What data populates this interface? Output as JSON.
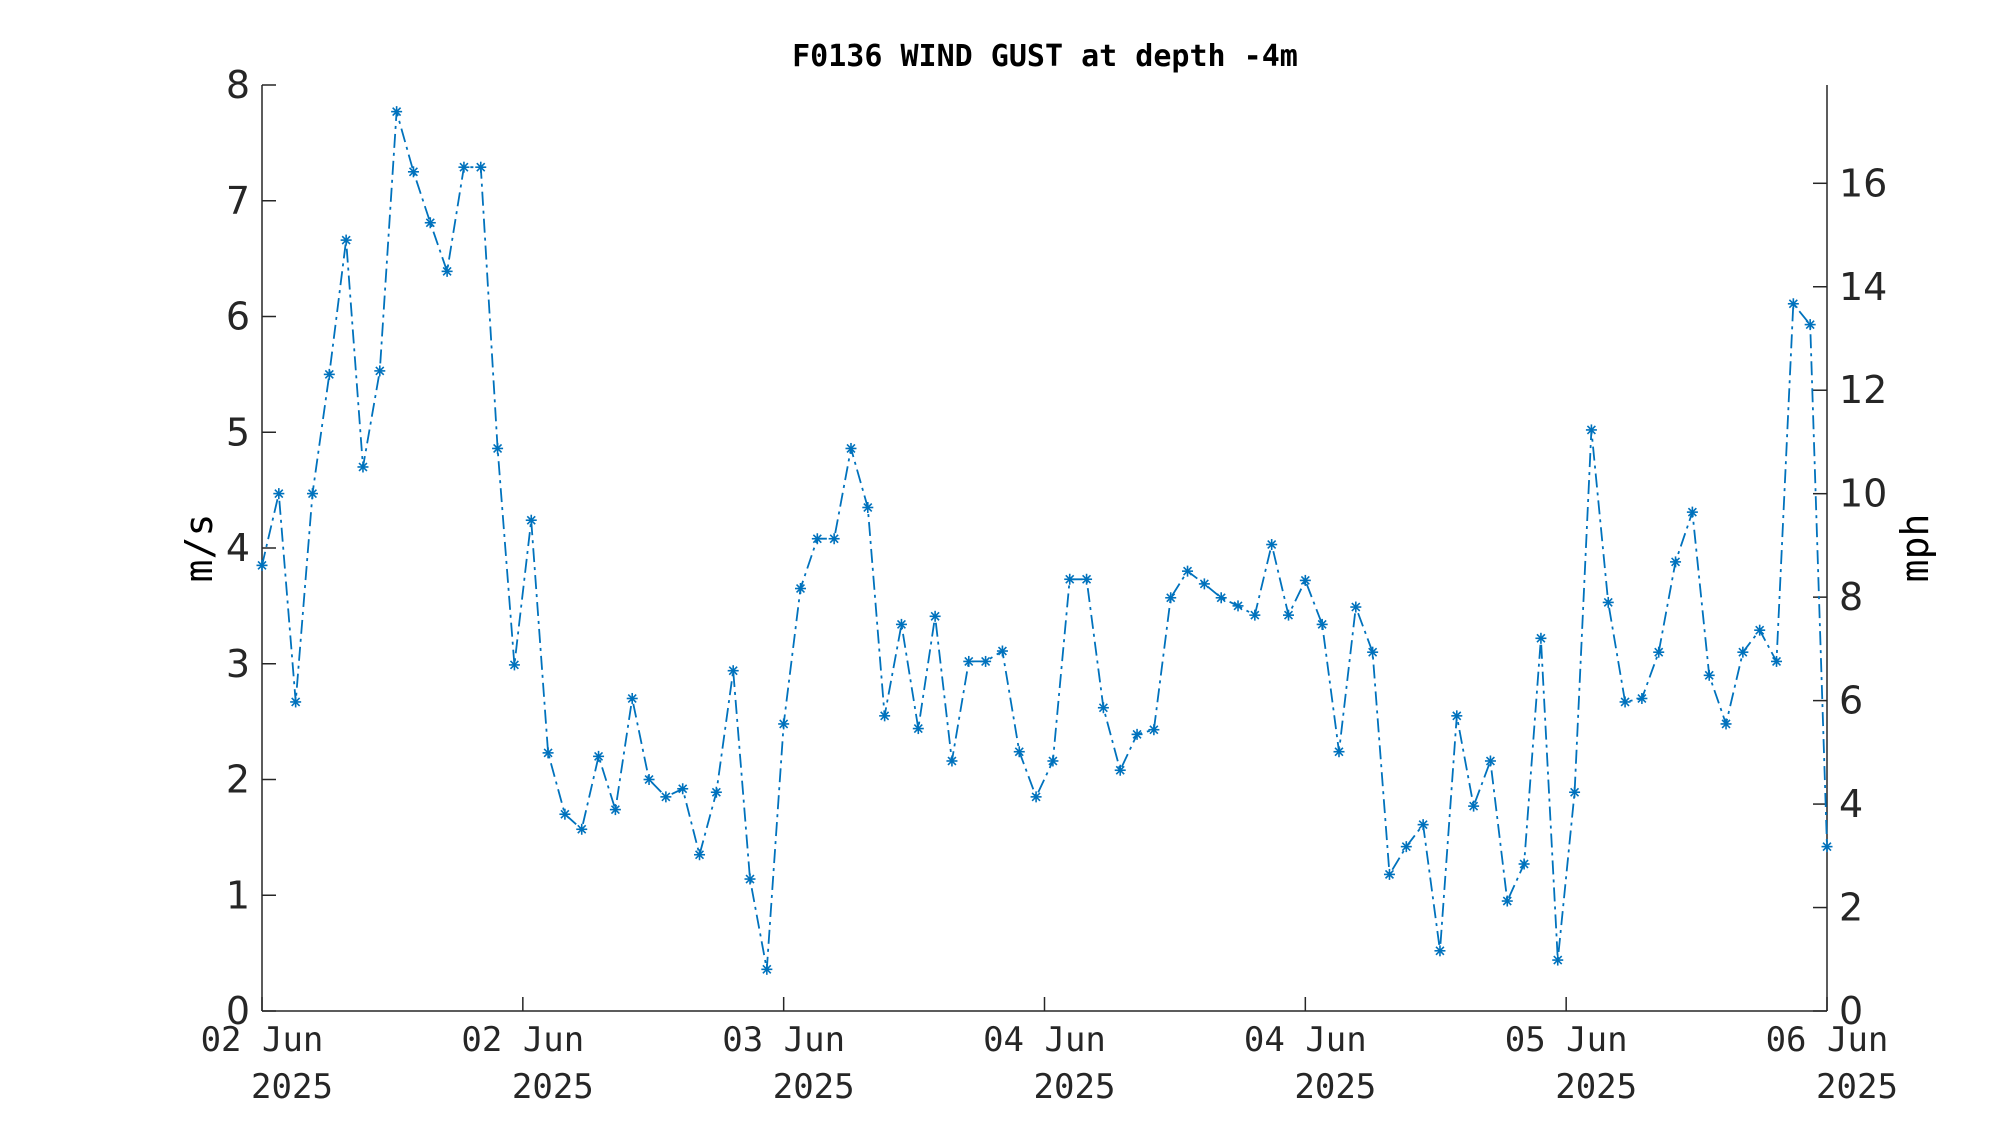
{
  "chart_data": {
    "type": "line",
    "title": "F0136 WIND GUST at depth -4m",
    "ylabel": "m/s",
    "y2label": "mph",
    "ylim": [
      0,
      8
    ],
    "y2lim": [
      0,
      17.9
    ],
    "yticks": [
      "0",
      "1",
      "2",
      "3",
      "4",
      "5",
      "6",
      "7",
      "8"
    ],
    "y2ticks": [
      "0",
      "2",
      "4",
      "6",
      "8",
      "10",
      "12",
      "14",
      "16"
    ],
    "xticks": [
      {
        "line1": "02 Jun",
        "line2": "2025"
      },
      {
        "line1": "02 Jun",
        "line2": "2025"
      },
      {
        "line1": "03 Jun",
        "line2": "2025"
      },
      {
        "line1": "04 Jun",
        "line2": "2025"
      },
      {
        "line1": "04 Jun",
        "line2": "2025"
      },
      {
        "line1": "05 Jun",
        "line2": "2025"
      },
      {
        "line1": "06 Jun",
        "line2": "2025"
      }
    ],
    "line_style": "dash-dot",
    "marker": "asterisk",
    "grid": false,
    "series": [
      {
        "color": "#0072BD",
        "values": [
          3.85,
          4.47,
          2.67,
          4.47,
          5.5,
          6.66,
          4.7,
          5.53,
          7.77,
          7.25,
          6.81,
          6.39,
          7.29,
          7.29,
          4.86,
          2.99,
          4.24,
          2.23,
          1.7,
          1.57,
          2.2,
          1.74,
          2.7,
          2.0,
          1.85,
          1.92,
          1.35,
          1.89,
          2.94,
          1.14,
          0.36,
          2.48,
          3.65,
          4.08,
          4.08,
          4.86,
          4.35,
          2.55,
          3.34,
          2.44,
          3.41,
          2.16,
          3.02,
          3.02,
          3.11,
          2.24,
          1.85,
          2.16,
          3.73,
          3.73,
          2.62,
          2.08,
          2.39,
          2.43,
          3.57,
          3.8,
          3.69,
          3.57,
          3.5,
          3.42,
          4.03,
          3.42,
          3.72,
          3.34,
          2.24,
          3.49,
          3.1,
          1.18,
          1.42,
          1.61,
          0.52,
          2.55,
          1.77,
          2.16,
          0.95,
          1.27,
          3.22,
          0.44,
          1.89,
          5.02,
          3.53,
          2.67,
          2.7,
          3.1,
          3.88,
          4.31,
          2.9,
          2.48,
          3.1,
          3.29,
          3.02,
          6.11,
          5.93,
          1.42
        ]
      }
    ]
  }
}
